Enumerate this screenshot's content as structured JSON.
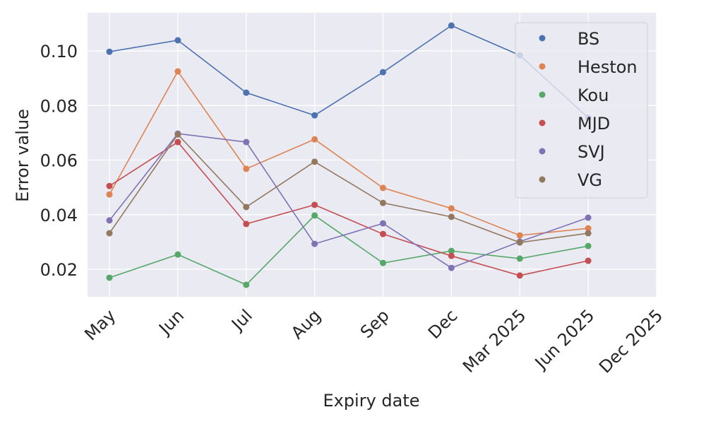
{
  "chart_data": {
    "type": "line",
    "x_label": "Expiry date",
    "y_label": "Error value",
    "categories": [
      "May",
      "Jun",
      "Jul",
      "Aug",
      "Sep",
      "Dec",
      "Mar 2025",
      "Jun 2025",
      "Dec 2025"
    ],
    "series": [
      {
        "name": "BS",
        "color": "#4c72b0",
        "values": [
          0.0997,
          0.1039,
          0.0847,
          0.0764,
          0.0922,
          0.1093,
          0.0984,
          0.0755,
          null
        ]
      },
      {
        "name": "Heston",
        "color": "#dd8452",
        "values": [
          0.0474,
          0.0925,
          0.0568,
          0.0676,
          0.0498,
          0.0423,
          0.0324,
          0.035,
          null
        ]
      },
      {
        "name": "Kou",
        "color": "#55a868",
        "values": [
          0.0169,
          0.0254,
          0.0143,
          0.0397,
          0.0223,
          0.0267,
          0.0239,
          0.0285,
          null
        ]
      },
      {
        "name": "MJD",
        "color": "#c44e52",
        "values": [
          0.0505,
          0.0666,
          0.0366,
          0.0436,
          0.0329,
          0.0249,
          0.0177,
          0.0231,
          null
        ]
      },
      {
        "name": "SVJ",
        "color": "#8172b3",
        "values": [
          0.0379,
          0.0697,
          0.0666,
          0.0293,
          0.0368,
          0.0205,
          0.0301,
          0.0389,
          null
        ]
      },
      {
        "name": "VG",
        "color": "#937860",
        "values": [
          0.0332,
          0.0694,
          0.0428,
          0.0594,
          0.0443,
          0.0392,
          0.0298,
          0.0332,
          null
        ]
      }
    ],
    "ylim": [
      0.0099,
      0.114
    ],
    "yticks": [
      0.02,
      0.04,
      0.06,
      0.08,
      {
        "value": 0.1,
        "label": "0.10"
      }
    ],
    "grid": true,
    "legend": "upper right"
  }
}
